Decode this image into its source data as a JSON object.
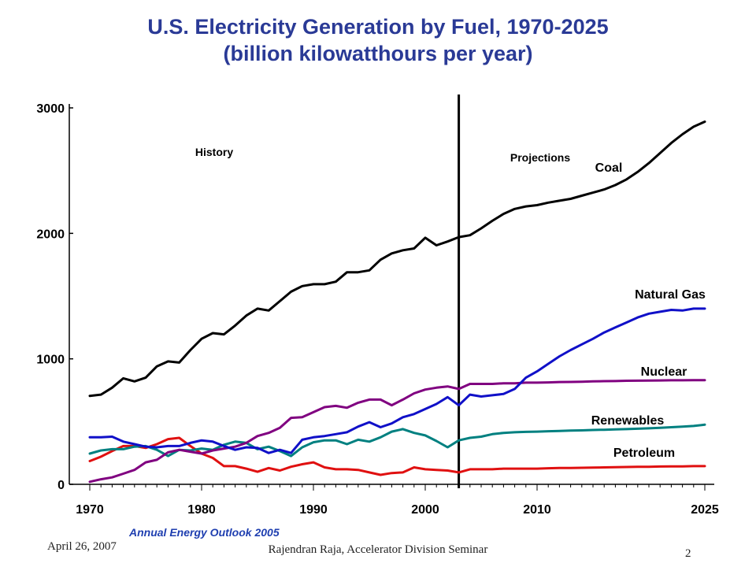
{
  "slide": {
    "title_line1": "U.S. Electricity Generation by Fuel, 1970-2025",
    "title_line2": "(billion kilowatthours per year)",
    "source": "Annual Energy Outlook 2005",
    "footer_date": "April 26, 2007",
    "footer_text": "Rajendran Raja, Accelerator Division Seminar",
    "page_number": "2"
  },
  "chart_data": {
    "type": "line",
    "ylim": [
      0,
      3000
    ],
    "yticks": [
      0,
      1000,
      2000,
      3000
    ],
    "xlim": [
      1970,
      2025
    ],
    "xtick_labels": [
      "1970",
      "1980",
      "1990",
      "2000",
      "2010",
      "2025"
    ],
    "xtick_values": [
      1970,
      1980,
      1990,
      2000,
      2010,
      2025
    ],
    "divider_year": 2003,
    "annotations": [
      "History",
      "Projections"
    ],
    "colors": {
      "Coal": "#000000",
      "Natural Gas": "#1010c8",
      "Nuclear": "#800080",
      "Renewables": "#008080",
      "Petroleum": "#e01010"
    },
    "x": [
      1970,
      1971,
      1972,
      1973,
      1974,
      1975,
      1976,
      1977,
      1978,
      1979,
      1980,
      1981,
      1982,
      1983,
      1984,
      1985,
      1986,
      1987,
      1988,
      1989,
      1990,
      1991,
      1992,
      1993,
      1994,
      1995,
      1996,
      1997,
      1998,
      1999,
      2000,
      2001,
      2002,
      2003,
      2004,
      2005,
      2006,
      2007,
      2008,
      2009,
      2010,
      2011,
      2012,
      2013,
      2014,
      2015,
      2016,
      2017,
      2018,
      2019,
      2020,
      2021,
      2022,
      2023,
      2024,
      2025
    ],
    "series": [
      {
        "name": "Coal",
        "values": [
          705,
          715,
          770,
          845,
          820,
          850,
          940,
          980,
          970,
          1070,
          1160,
          1205,
          1195,
          1265,
          1345,
          1400,
          1385,
          1460,
          1535,
          1580,
          1595,
          1595,
          1615,
          1690,
          1690,
          1705,
          1790,
          1840,
          1865,
          1880,
          1965,
          1905,
          1935,
          1970,
          1985,
          2040,
          2100,
          2155,
          2195,
          2215,
          2225,
          2245,
          2260,
          2275,
          2300,
          2325,
          2350,
          2385,
          2430,
          2490,
          2560,
          2640,
          2720,
          2790,
          2850,
          2890
        ]
      },
      {
        "name": "Natural Gas",
        "values": [
          375,
          375,
          380,
          340,
          320,
          300,
          295,
          305,
          305,
          330,
          350,
          340,
          305,
          275,
          295,
          290,
          250,
          275,
          250,
          355,
          375,
          385,
          400,
          415,
          460,
          495,
          455,
          485,
          535,
          560,
          600,
          640,
          695,
          630,
          715,
          700,
          710,
          720,
          760,
          850,
          900,
          960,
          1020,
          1070,
          1115,
          1160,
          1210,
          1250,
          1290,
          1330,
          1360,
          1375,
          1390,
          1385,
          1400,
          1400
        ]
      },
      {
        "name": "Nuclear",
        "values": [
          20,
          40,
          55,
          85,
          115,
          175,
          195,
          255,
          275,
          260,
          245,
          270,
          285,
          300,
          330,
          385,
          410,
          450,
          530,
          535,
          575,
          615,
          625,
          610,
          650,
          675,
          675,
          630,
          675,
          725,
          755,
          770,
          780,
          760,
          800,
          800,
          800,
          805,
          805,
          810,
          810,
          812,
          815,
          816,
          818,
          820,
          822,
          823,
          825,
          826,
          827,
          828,
          829,
          829,
          830,
          830
        ]
      },
      {
        "name": "Renewables",
        "values": [
          245,
          270,
          280,
          280,
          300,
          305,
          275,
          225,
          275,
          270,
          285,
          275,
          315,
          340,
          330,
          280,
          300,
          265,
          225,
          295,
          335,
          350,
          350,
          320,
          355,
          340,
          375,
          420,
          440,
          410,
          390,
          345,
          295,
          350,
          370,
          380,
          400,
          410,
          415,
          418,
          420,
          423,
          425,
          428,
          430,
          433,
          435,
          438,
          440,
          443,
          446,
          450,
          455,
          460,
          465,
          475
        ]
      },
      {
        "name": "Petroleum",
        "values": [
          185,
          220,
          265,
          305,
          305,
          290,
          320,
          360,
          370,
          305,
          245,
          210,
          145,
          145,
          125,
          100,
          130,
          110,
          140,
          160,
          175,
          135,
          120,
          120,
          115,
          95,
          75,
          90,
          95,
          135,
          120,
          115,
          110,
          95,
          120,
          120,
          120,
          125,
          125,
          125,
          125,
          128,
          130,
          130,
          132,
          133,
          135,
          137,
          138,
          140,
          140,
          142,
          143,
          143,
          145,
          145
        ]
      }
    ]
  }
}
